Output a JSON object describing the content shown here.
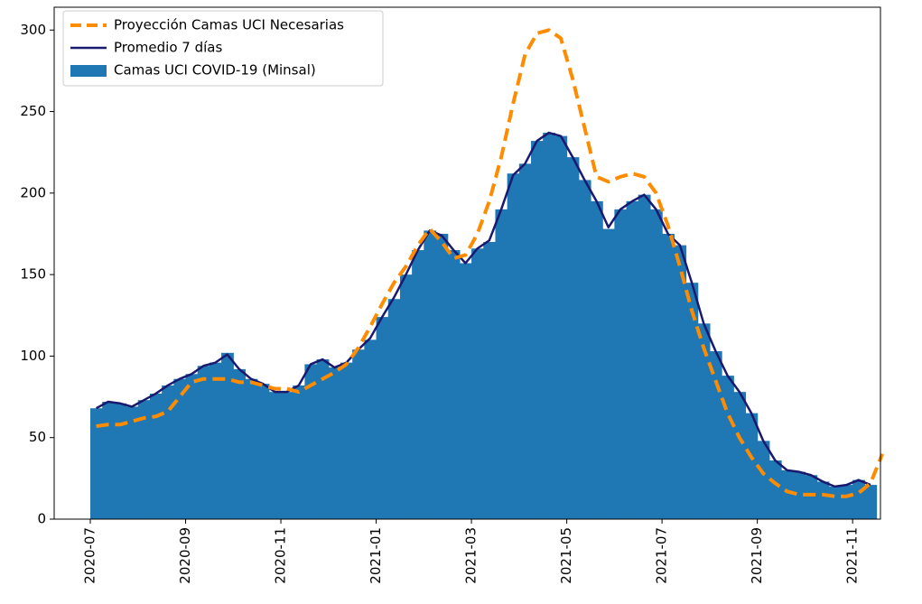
{
  "chart_data": {
    "type": "bar",
    "categories": [
      "2020-07",
      null,
      null,
      null,
      null,
      null,
      null,
      null,
      "2020-09",
      null,
      null,
      null,
      null,
      null,
      null,
      null,
      "2020-11",
      null,
      null,
      null,
      null,
      null,
      null,
      null,
      "2021-01",
      null,
      null,
      null,
      null,
      null,
      null,
      null,
      "2021-03",
      null,
      null,
      null,
      null,
      null,
      null,
      null,
      "2021-05",
      null,
      null,
      null,
      null,
      null,
      null,
      null,
      "2021-07",
      null,
      null,
      null,
      null,
      null,
      null,
      null,
      "2021-09",
      null,
      null,
      null,
      null,
      null,
      null,
      null,
      "2021-11",
      null,
      null
    ],
    "series": [
      {
        "name": "Proyección Camas UCI Necesarias",
        "type": "line",
        "dashed": true,
        "color": "#ff8c00",
        "values": [
          57,
          58,
          58,
          60,
          62,
          63,
          66,
          75,
          84,
          86,
          86,
          86,
          84,
          84,
          82,
          80,
          80,
          78,
          82,
          86,
          90,
          95,
          105,
          118,
          132,
          145,
          155,
          168,
          178,
          170,
          160,
          162,
          175,
          195,
          222,
          255,
          285,
          298,
          300,
          295,
          270,
          240,
          210,
          207,
          210,
          212,
          210,
          200,
          180,
          155,
          128,
          105,
          85,
          65,
          50,
          38,
          28,
          22,
          17,
          15,
          15,
          15,
          14,
          14,
          16,
          22,
          40
        ]
      },
      {
        "name": "Promedio 7 días",
        "type": "line",
        "color": "#191970",
        "values": [
          68,
          72,
          71,
          69,
          73,
          77,
          82,
          86,
          89,
          94,
          96,
          101,
          92,
          86,
          83,
          78,
          78,
          82,
          95,
          98,
          93,
          96,
          104,
          111,
          124,
          136,
          150,
          165,
          177,
          174,
          165,
          157,
          166,
          171,
          190,
          211,
          218,
          232,
          237,
          235,
          222,
          208,
          195,
          179,
          190,
          195,
          199,
          190,
          175,
          168,
          145,
          120,
          103,
          88,
          78,
          65,
          48,
          36,
          30,
          29,
          27,
          23,
          20,
          21,
          24,
          21,
          null
        ]
      },
      {
        "name": "Camas UCI COVID-19 (Minsal)",
        "type": "bar",
        "color": "#1f77b4",
        "values": [
          68,
          72,
          71,
          69,
          73,
          77,
          82,
          86,
          89,
          94,
          96,
          102,
          92,
          86,
          83,
          78,
          78,
          82,
          95,
          98,
          93,
          96,
          104,
          110,
          124,
          135,
          150,
          165,
          177,
          175,
          165,
          157,
          166,
          170,
          190,
          212,
          218,
          232,
          237,
          235,
          222,
          208,
          195,
          178,
          190,
          195,
          199,
          190,
          175,
          168,
          145,
          120,
          103,
          88,
          78,
          65,
          48,
          36,
          30,
          29,
          27,
          23,
          20,
          21,
          24,
          21,
          null
        ]
      }
    ],
    "ylim": [
      0,
      314
    ],
    "yticks": [
      0,
      50,
      100,
      150,
      200,
      250,
      300
    ],
    "legend": "upper left"
  }
}
